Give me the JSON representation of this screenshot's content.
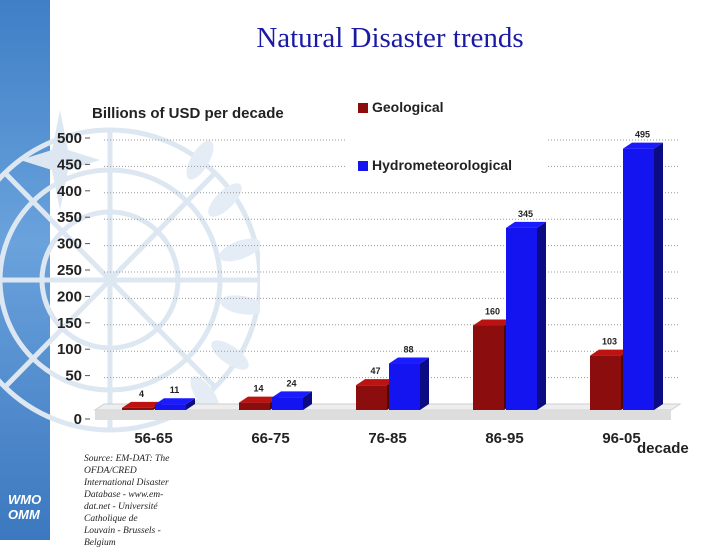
{
  "slide": {
    "title": "Natural Disaster trends",
    "logo_lines": [
      "WMO",
      "OMM"
    ],
    "source_note": "Source: EM-DAT: The OFDA/CRED International Disaster Database - www.em-dat.net - Université Catholique de Louvain - Brussels - Belgium"
  },
  "chart_data": {
    "type": "bar",
    "title": "Billions of USD per decade",
    "xlabel": "decade",
    "ylabel": "",
    "categories": [
      "56-65",
      "66-75",
      "76-85",
      "86-95",
      "96-05"
    ],
    "series": [
      {
        "name": "Geological",
        "color": "#8b0d0d",
        "values": [
          4,
          14,
          47,
          160,
          103
        ]
      },
      {
        "name": "Hydrometeorological",
        "color": "#1414f0",
        "values": [
          11,
          24,
          88,
          345,
          495
        ]
      }
    ],
    "ylim": [
      0,
      500
    ],
    "yticks": [
      0,
      50,
      100,
      150,
      200,
      250,
      300,
      350,
      400,
      450,
      500
    ],
    "data_labels": true,
    "grid": true,
    "legend": "top-right"
  }
}
